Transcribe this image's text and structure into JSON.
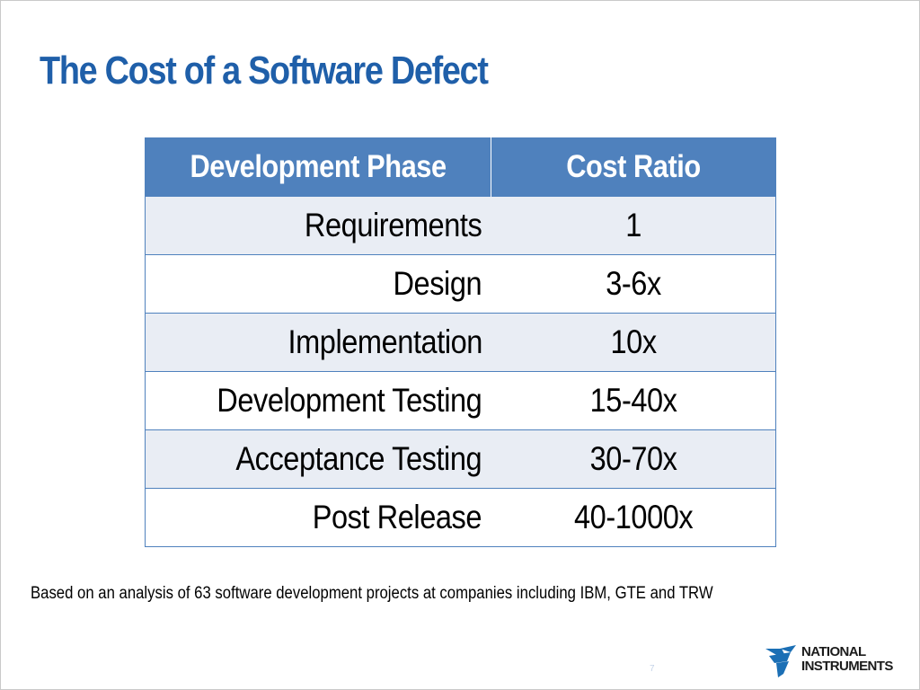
{
  "slide": {
    "title": "The Cost of a Software Defect",
    "footnote": "Based on an analysis of 63 software development projects at companies including IBM, GTE and TRW",
    "page_number": "7"
  },
  "table": {
    "headers": [
      "Development Phase",
      "Cost Ratio"
    ],
    "rows": [
      {
        "phase": "Requirements",
        "ratio": "1"
      },
      {
        "phase": "Design",
        "ratio": "3-6x"
      },
      {
        "phase": "Implementation",
        "ratio": "10x"
      },
      {
        "phase": "Development Testing",
        "ratio": "15-40x"
      },
      {
        "phase": "Acceptance Testing",
        "ratio": "30-70x"
      },
      {
        "phase": "Post Release",
        "ratio": "40-1000x"
      }
    ]
  },
  "logo": {
    "icon": "national-instruments-eagle-icon",
    "line1": "NATIONAL",
    "line2": "INSTRUMENTS"
  },
  "colors": {
    "title": "#1f5fa9",
    "header_bg": "#4f81bd",
    "band_bg": "#e9edf4",
    "logo_blue": "#1b6fb5"
  }
}
